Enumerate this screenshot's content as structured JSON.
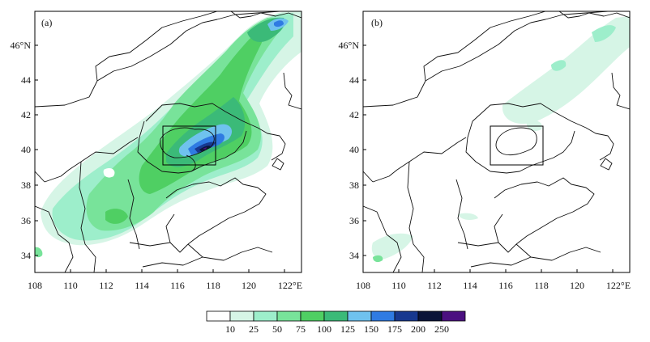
{
  "panels": [
    {
      "id": "a",
      "label": "(a)",
      "x_ticks": [
        "108",
        "110",
        "112",
        "114",
        "116",
        "118",
        "120",
        "122°E"
      ],
      "y_ticks": [
        "46°N",
        "44",
        "42",
        "40",
        "38",
        "36",
        "34"
      ]
    },
    {
      "id": "b",
      "label": "(b)",
      "x_ticks": [
        "108",
        "110",
        "112",
        "114",
        "116",
        "118",
        "120",
        "122°E"
      ],
      "y_ticks": [
        "46°N",
        "44",
        "42",
        "40",
        "38",
        "36",
        "34"
      ]
    }
  ],
  "colorbar": {
    "levels": [
      "10",
      "25",
      "50",
      "75",
      "100",
      "125",
      "150",
      "175",
      "200",
      "250"
    ],
    "colors": [
      "#ffffff",
      "#d6f5e6",
      "#9deecb",
      "#78e39a",
      "#4fcf63",
      "#3bba78",
      "#6fc2ee",
      "#2f7be2",
      "#17388f",
      "#0a1438",
      "#4b1080"
    ]
  }
}
